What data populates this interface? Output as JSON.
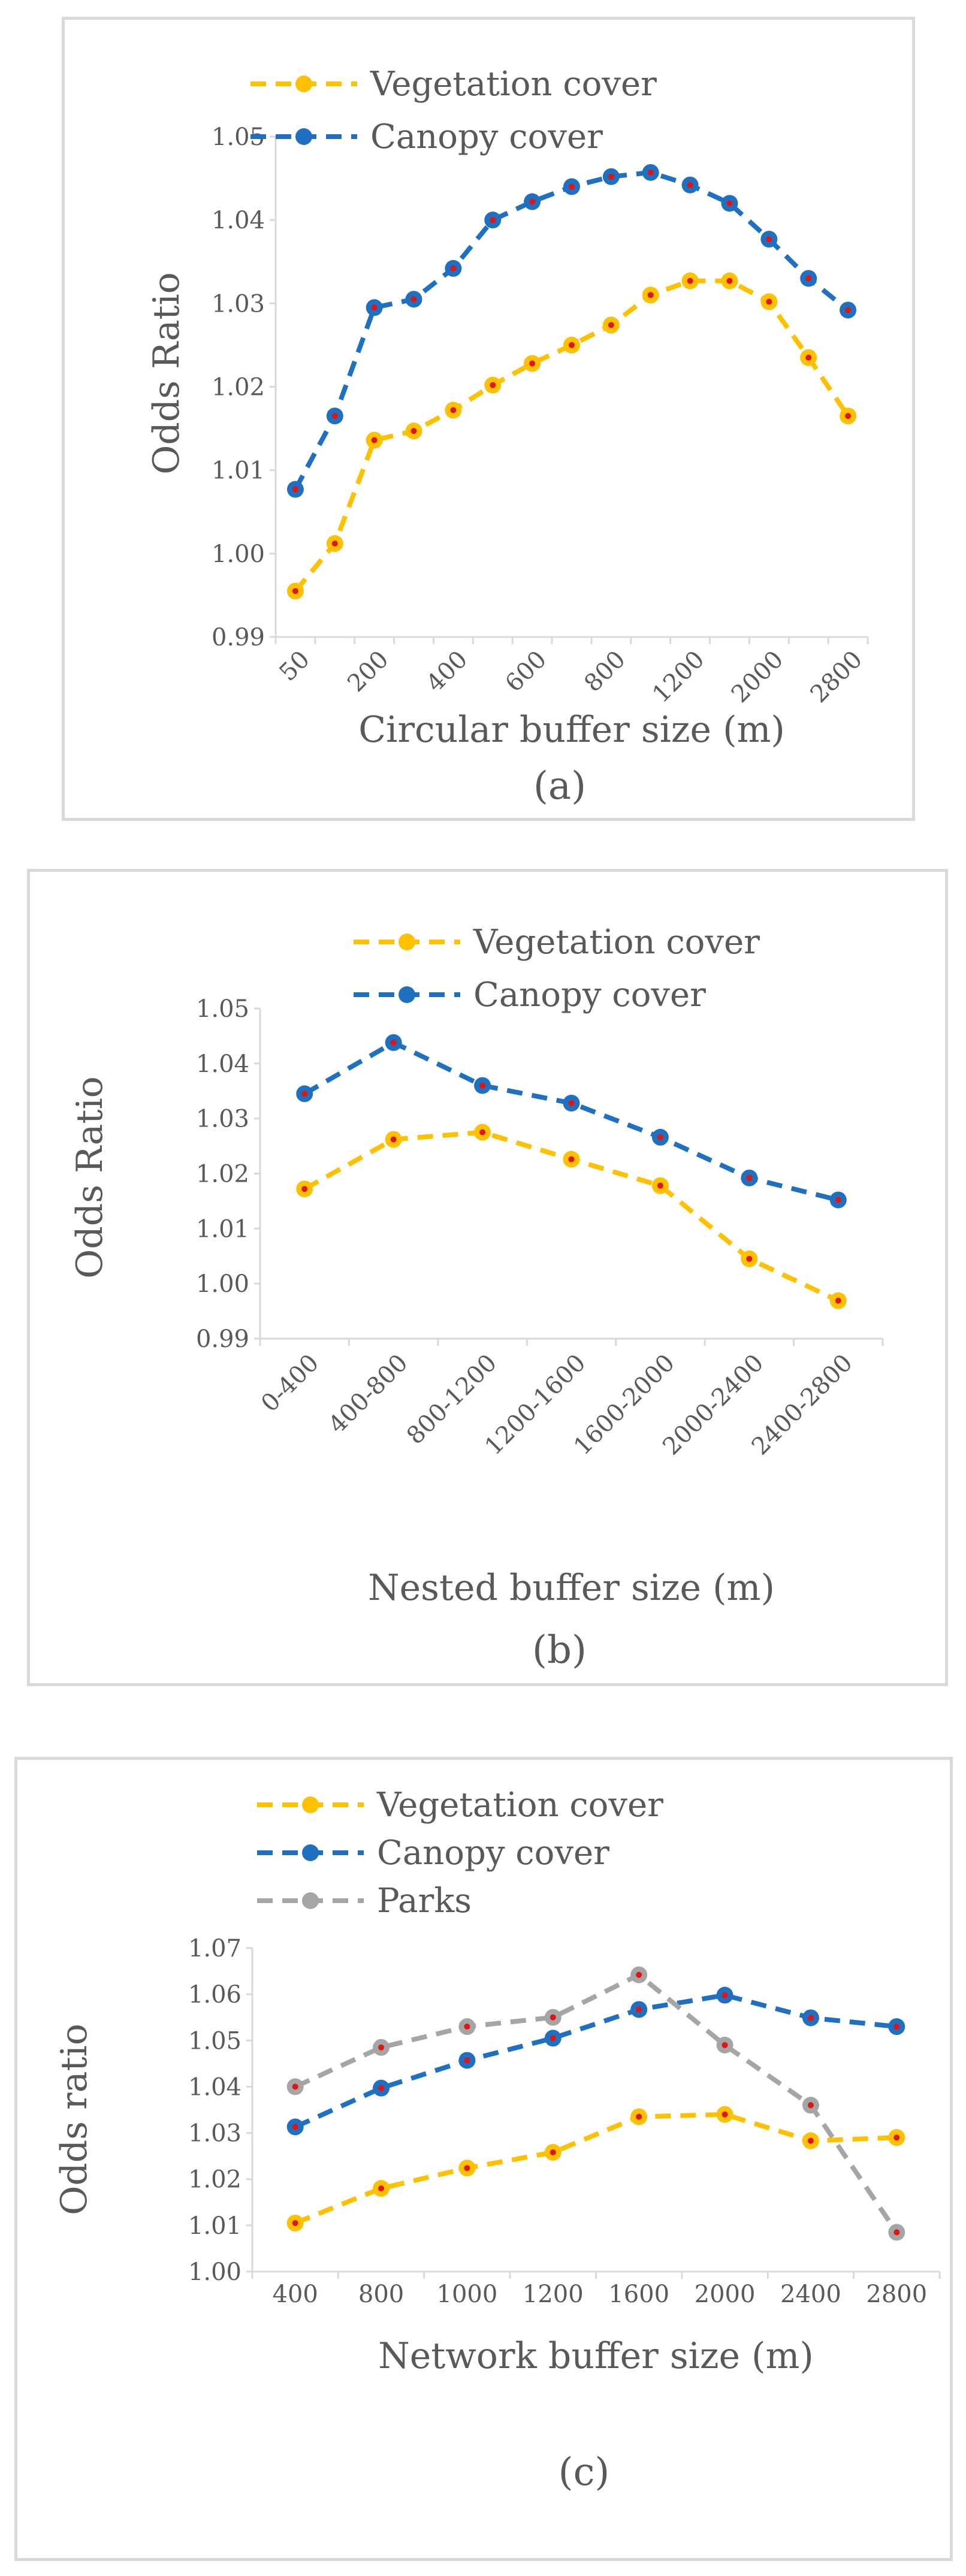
{
  "chart_data": [
    {
      "type": "line",
      "panel_label": "(a)",
      "xlabel": "Circular buffer size (m)",
      "ylabel": "Odds Ratio",
      "ylim": [
        0.99,
        1.05
      ],
      "yticks": [
        "0.99",
        "1.00",
        "1.01",
        "1.02",
        "1.03",
        "1.04",
        "1.05"
      ],
      "grid": false,
      "legend": "top",
      "x_tick_labels": [
        "50",
        "200",
        "400",
        "600",
        "800",
        "1200",
        "2000",
        "2800"
      ],
      "series": [
        {
          "name": "Vegetation cover",
          "color": "#FFC000",
          "values": [
            0.9955,
            1.0012,
            1.0136,
            1.0147,
            1.0172,
            1.0202,
            1.0228,
            1.025,
            1.0274,
            1.031,
            1.0327,
            1.0327,
            1.0302,
            1.0235,
            1.0165
          ]
        },
        {
          "name": "Canopy cover",
          "color": "#1F70C1",
          "values": [
            1.0077,
            1.0165,
            1.0295,
            1.0305,
            1.0342,
            1.04,
            1.0422,
            1.044,
            1.0452,
            1.0457,
            1.0442,
            1.042,
            1.0377,
            1.033,
            1.0292
          ]
        }
      ]
    },
    {
      "type": "line",
      "panel_label": "(b)",
      "xlabel": "Nested buffer size (m)",
      "ylabel": "Odds Ratio",
      "ylim": [
        0.99,
        1.05
      ],
      "yticks": [
        "0.99",
        "1.00",
        "1.01",
        "1.02",
        "1.03",
        "1.04",
        "1.05"
      ],
      "grid": false,
      "legend": "top",
      "categories": [
        "0-400",
        "400-800",
        "800-1200",
        "1200-1600",
        "1600-2000",
        "2000-2400",
        "2400-2800"
      ],
      "series": [
        {
          "name": "Vegetation cover",
          "color": "#FFC000",
          "values": [
            1.0172,
            1.0262,
            1.0275,
            1.0226,
            1.0178,
            1.0045,
            0.9969
          ]
        },
        {
          "name": "Canopy cover",
          "color": "#1F70C1",
          "values": [
            1.0345,
            1.0438,
            1.036,
            1.0328,
            1.0266,
            1.0192,
            1.0152
          ]
        }
      ]
    },
    {
      "type": "line",
      "panel_label": "(c)",
      "xlabel": "Network buffer size (m)",
      "ylabel": "Odds ratio",
      "ylim": [
        1.0,
        1.07
      ],
      "yticks": [
        "1.00",
        "1.01",
        "1.02",
        "1.03",
        "1.04",
        "1.05",
        "1.06",
        "1.07"
      ],
      "grid": false,
      "legend": "top",
      "categories": [
        "400",
        "800",
        "1000",
        "1200",
        "1600",
        "2000",
        "2400",
        "2800"
      ],
      "series": [
        {
          "name": "Vegetation cover",
          "color": "#FFC000",
          "values": [
            1.0105,
            1.018,
            1.0224,
            1.0258,
            1.0335,
            1.034,
            1.0283,
            1.029
          ]
        },
        {
          "name": "Canopy cover",
          "color": "#1F70C1",
          "values": [
            1.0313,
            1.0397,
            1.0457,
            1.0505,
            1.0567,
            1.0598,
            1.0549,
            1.053
          ]
        },
        {
          "name": "Parks",
          "color": "#A5A5A5",
          "values": [
            1.04,
            1.0485,
            1.053,
            1.055,
            1.0642,
            1.049,
            1.036,
            1.0085
          ]
        }
      ]
    }
  ]
}
